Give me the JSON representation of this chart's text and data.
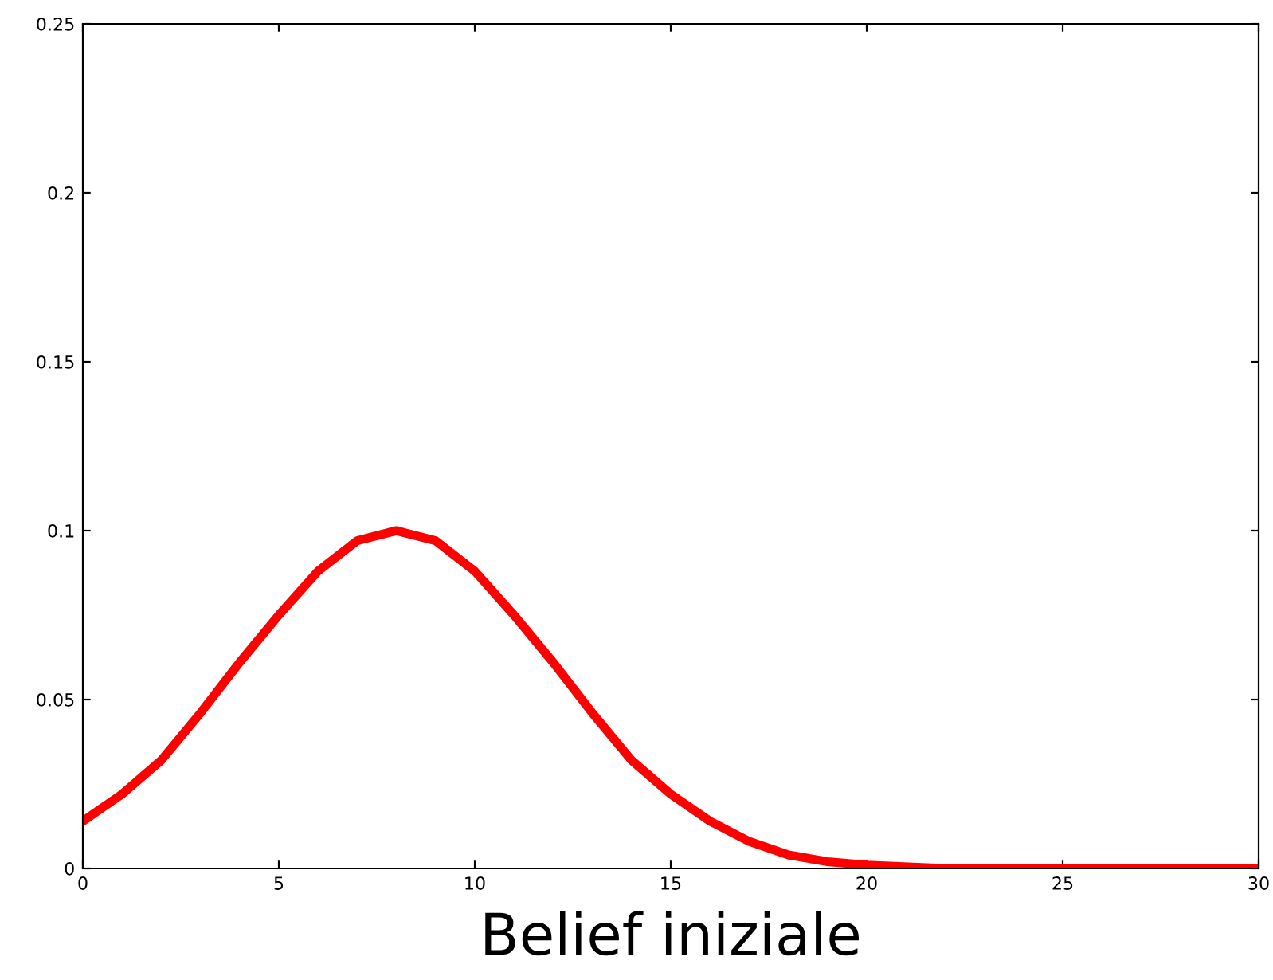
{
  "chart_data": {
    "type": "line",
    "xlabel": "Belief iniziale",
    "x": [
      0,
      1,
      2,
      3,
      4,
      5,
      6,
      7,
      8,
      9,
      10,
      11,
      12,
      13,
      14,
      15,
      16,
      17,
      18,
      19,
      20,
      22,
      25,
      30
    ],
    "series": [
      {
        "color": "#ff0000",
        "values": [
          0.014,
          0.022,
          0.032,
          0.046,
          0.061,
          0.075,
          0.088,
          0.097,
          0.1,
          0.097,
          0.088,
          0.075,
          0.061,
          0.046,
          0.032,
          0.022,
          0.014,
          0.008,
          0.004,
          0.002,
          0.001,
          0,
          0,
          0
        ]
      }
    ],
    "xlim": [
      0,
      30
    ],
    "xticks": [
      0,
      5,
      10,
      15,
      20,
      25,
      30
    ],
    "ylim": [
      0,
      0.25
    ],
    "yticks": [
      0,
      0.05,
      0.1,
      0.15,
      0.2,
      0.25
    ],
    "grid": false,
    "legend": false,
    "marker": "none",
    "line_style": "solid"
  }
}
